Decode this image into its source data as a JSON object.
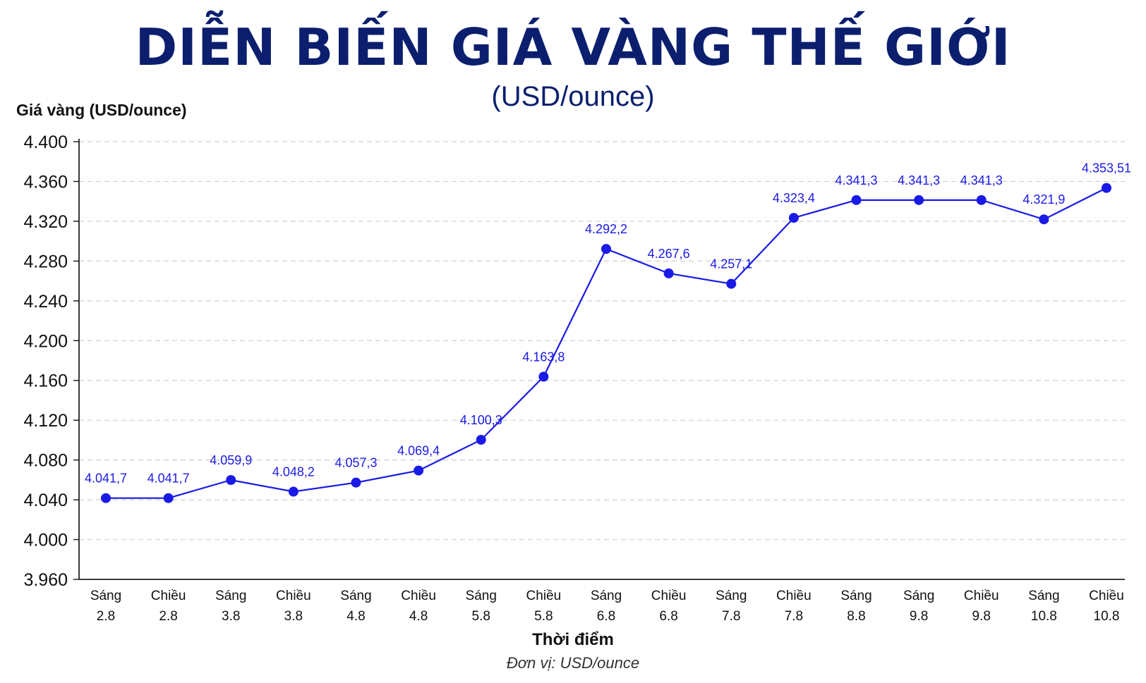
{
  "chart_data": {
    "type": "line",
    "title": "DIỄN BIẾN GIÁ VÀNG THẾ GIỚI",
    "subtitle": "(USD/ounce)",
    "ylabel": "Giá vàng (USD/ounce)",
    "xlabel": "Thời điểm",
    "note": "Đơn vị: USD/ounce",
    "ylim": [
      3960,
      4400
    ],
    "yticks": [
      3960,
      4000,
      4040,
      4080,
      4120,
      4160,
      4200,
      4240,
      4280,
      4320,
      4360,
      4400
    ],
    "ytick_labels": [
      "3.960",
      "4.000",
      "4.040",
      "4.080",
      "4.120",
      "4.160",
      "4.200",
      "4.240",
      "4.280",
      "4.320",
      "4.360",
      "4.400"
    ],
    "grid": true,
    "legend": "none",
    "color": "#1a1ae6",
    "categories": [
      [
        "Sáng",
        "2.8"
      ],
      [
        "Chiều",
        "2.8"
      ],
      [
        "Sáng",
        "3.8"
      ],
      [
        "Chiều",
        "3.8"
      ],
      [
        "Sáng",
        "4.8"
      ],
      [
        "Chiều",
        "4.8"
      ],
      [
        "Sáng",
        "5.8"
      ],
      [
        "Chiều",
        "5.8"
      ],
      [
        "Sáng",
        "6.8"
      ],
      [
        "Chiều",
        "6.8"
      ],
      [
        "Sáng",
        "7.8"
      ],
      [
        "Chiều",
        "7.8"
      ],
      [
        "Sáng",
        "8.8"
      ],
      [
        "Sáng",
        "9.8"
      ],
      [
        "Chiều",
        "9.8"
      ],
      [
        "Sáng",
        "10.8"
      ],
      [
        "Chiều",
        "10.8"
      ]
    ],
    "values": [
      4041.7,
      4041.7,
      4059.9,
      4048.2,
      4057.3,
      4069.4,
      4100.3,
      4163.8,
      4292.2,
      4267.6,
      4257.1,
      4323.4,
      4341.3,
      4341.3,
      4341.3,
      4321.9,
      4353.51
    ],
    "data_labels": [
      "4.041,7",
      "4.041,7",
      "4.059,9",
      "4.048,2",
      "4.057,3",
      "4.069,4",
      "4.100,3",
      "4.163,8",
      "4.292,2",
      "4.267,6",
      "4.257,1",
      "4.323,4",
      "4.341,3",
      "4.341,3",
      "4.341,3",
      "4.321,9",
      "4.353,51"
    ]
  }
}
